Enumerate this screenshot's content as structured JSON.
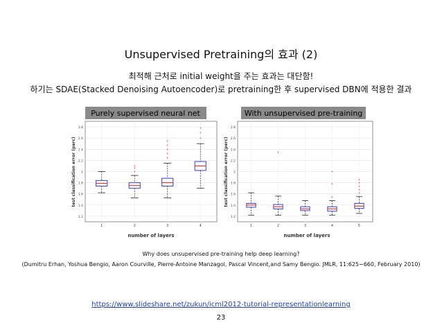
{
  "slide": {
    "title": "Unsupervised Pretraining의 효과 (2)",
    "line1": "최적해 근처로 initial weight을 주는 효과는 대단함!",
    "line2": "하기는 SDAE(Stacked Denoising Autoencoder)로 pretraining한 후 supervised DBN에 적용한 결과",
    "caption_title": "Why does unsupervised pre-training help deep learning?",
    "caption_authors": "(Dumitru Erhan, Yoshua Bengio, Aaron Courville, Pierre-Antoine Manzagol, Pascal Vincent,and Samy Bengio. JMLR, 11:625−660, February 2010)",
    "link": "https://www.slideshare.net/zukun/icml2012-tutorial-representationlearning",
    "page_number": "23"
  },
  "figure": {
    "left_panel": {
      "title": "Purely supervised neural net",
      "ylabel": "test classification error (perc)",
      "xlabel": "number of layers",
      "x_ticks": [
        "1",
        "2",
        "3",
        "4"
      ],
      "y_ticks": [
        "1.2",
        "1.4",
        "1.6",
        "1.8",
        "2",
        "2.2",
        "2.4",
        "2.6",
        "2.8"
      ]
    },
    "right_panel": {
      "title": "With unsupervised pre-training",
      "ylabel": "test classification error (perc)",
      "xlabel": "number of layers",
      "x_ticks": [
        "1",
        "2",
        "3",
        "4",
        "5"
      ],
      "y_ticks": [
        "1.2",
        "1.4",
        "1.6",
        "1.8",
        "2",
        "2.2",
        "2.4",
        "2.6",
        "2.8"
      ]
    },
    "colors": {
      "box": "#3a3ad0",
      "median": "#e03030",
      "outlier": "#e03030",
      "title_bg": "#8a8a8a"
    }
  },
  "chart_data": [
    {
      "type": "box",
      "title": "Purely supervised neural net",
      "xlabel": "number of layers",
      "ylabel": "test classification error (perc)",
      "ylim": [
        1.1,
        2.9
      ],
      "categories": [
        "1",
        "2",
        "3",
        "4"
      ],
      "boxes": [
        {
          "x": "1",
          "min": 1.62,
          "q1": 1.74,
          "median": 1.79,
          "q3": 1.84,
          "max": 2.0
        },
        {
          "x": "2",
          "min": 1.53,
          "q1": 1.7,
          "median": 1.75,
          "q3": 1.8,
          "max": 1.93,
          "outliers": [
            2.0,
            2.06,
            2.1
          ]
        },
        {
          "x": "3",
          "min": 1.53,
          "q1": 1.74,
          "median": 1.8,
          "q3": 1.88,
          "max": 2.15,
          "outliers": [
            2.25,
            2.32,
            2.4,
            2.48,
            2.55
          ]
        },
        {
          "x": "4",
          "min": 1.7,
          "q1": 2.02,
          "median": 2.1,
          "q3": 2.18,
          "max": 2.5,
          "outliers": [
            2.6,
            2.7,
            2.78
          ]
        }
      ]
    },
    {
      "type": "box",
      "title": "With unsupervised pre-training",
      "xlabel": "number of layers",
      "ylabel": "test classification error (perc)",
      "ylim": [
        1.1,
        2.9
      ],
      "categories": [
        "1",
        "2",
        "3",
        "4",
        "5"
      ],
      "boxes": [
        {
          "x": "1",
          "min": 1.22,
          "q1": 1.36,
          "median": 1.4,
          "q3": 1.43,
          "max": 1.62
        },
        {
          "x": "2",
          "min": 1.22,
          "q1": 1.33,
          "median": 1.37,
          "q3": 1.41,
          "max": 1.56,
          "outliers": [
            2.35
          ]
        },
        {
          "x": "3",
          "min": 1.22,
          "q1": 1.3,
          "median": 1.33,
          "q3": 1.37,
          "max": 1.48
        },
        {
          "x": "4",
          "min": 1.22,
          "q1": 1.29,
          "median": 1.33,
          "q3": 1.37,
          "max": 1.48,
          "outliers": [
            1.55,
            1.78,
            2.0
          ]
        },
        {
          "x": "5",
          "min": 1.25,
          "q1": 1.34,
          "median": 1.38,
          "q3": 1.43,
          "max": 1.55,
          "outliers": [
            1.62,
            1.68,
            1.74,
            1.8,
            1.86
          ]
        }
      ]
    }
  ]
}
